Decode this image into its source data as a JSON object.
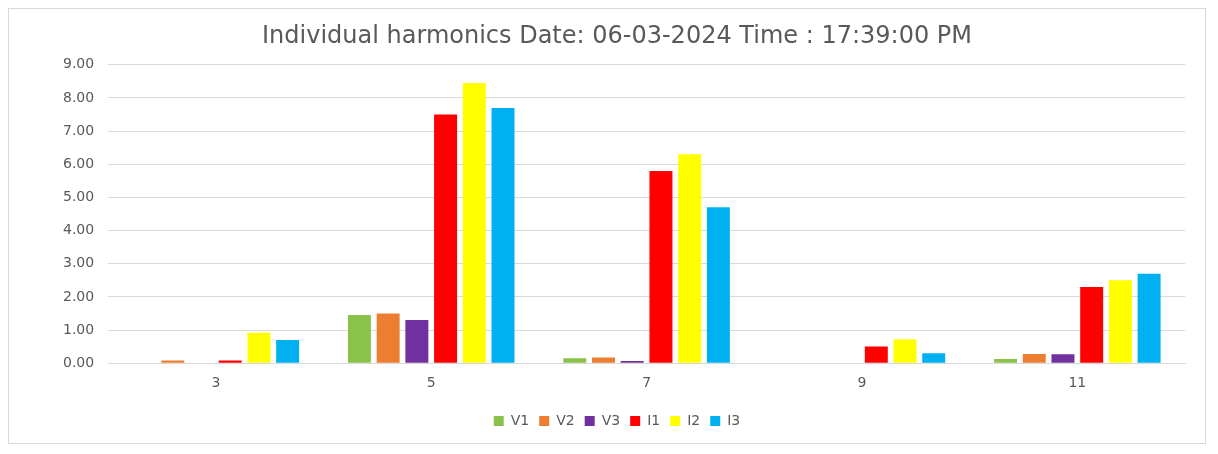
{
  "chart_data": {
    "type": "bar",
    "title": "Individual harmonics Date: 06-03-2024 Time : 17:39:00 PM",
    "categories": [
      "3",
      "5",
      "7",
      "9",
      "11"
    ],
    "series": [
      {
        "name": "V1",
        "color": "#8bc34a",
        "values": [
          0,
          1.45,
          0.15,
          0,
          0.13
        ]
      },
      {
        "name": "V2",
        "color": "#ed7d31",
        "values": [
          0.08,
          1.5,
          0.17,
          0,
          0.28
        ]
      },
      {
        "name": "V3",
        "color": "#7030a0",
        "values": [
          0,
          1.3,
          0.07,
          0,
          0.27
        ]
      },
      {
        "name": "I1",
        "color": "#ff0000",
        "values": [
          0.08,
          7.5,
          5.8,
          0.5,
          2.3
        ]
      },
      {
        "name": "I2",
        "color": "#ffff00",
        "values": [
          0.92,
          8.45,
          6.3,
          0.72,
          2.5
        ]
      },
      {
        "name": "I3",
        "color": "#00b0f0",
        "values": [
          0.7,
          7.7,
          4.7,
          0.3,
          2.7
        ]
      }
    ],
    "ylim": [
      0,
      9
    ],
    "yticks": [
      {
        "value": 0,
        "label": "0.00"
      },
      {
        "value": 1,
        "label": "1.00"
      },
      {
        "value": 2,
        "label": "2.00"
      },
      {
        "value": 3,
        "label": "3.00"
      },
      {
        "value": 4,
        "label": "4.00"
      },
      {
        "value": 5,
        "label": "5.00"
      },
      {
        "value": 6,
        "label": "6.00"
      },
      {
        "value": 7,
        "label": "7.00"
      },
      {
        "value": 8,
        "label": "8.00"
      },
      {
        "value": 9,
        "label": "9.00"
      }
    ],
    "grid": "y",
    "legend": "bottom"
  }
}
